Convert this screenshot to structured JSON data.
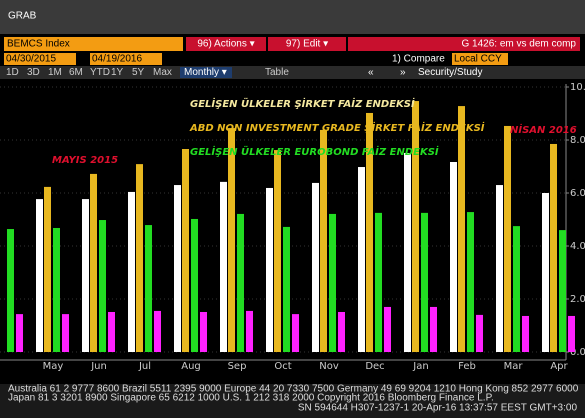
{
  "ui": {
    "window_title": "GRAB",
    "ticker": "BEMCS Index",
    "actions": "96) Actions ▾",
    "edit": "97) Edit ▾",
    "chart_id": "G 1426: em vs dem comp",
    "start_date": "04/30/2015",
    "end_date": "04/19/2016",
    "compare": "1) Compare",
    "currency": "Local CCY",
    "study": "Security/Study",
    "periods": [
      "1D",
      "3D",
      "1M",
      "6M",
      "YTD",
      "1Y",
      "5Y",
      "Max"
    ],
    "frequency": "Monthly ▾",
    "table": "Table",
    "footer": [
      "Australia 61 2 9777 8600 Brazil 5511 2395 9000 Europe 44 20 7330 7500 Germany 49 69 9204 1210 Hong Kong 852 2977 6000",
      "Japan 81 3 3201 8900 Singapore 65 6212 1000 U.S. 1 212 318 2000 Copyright 2016 Bloomberg Finance L.P.",
      "SN 594644 H307-1237-1 20-Apr-16 13:37:57 EEST GMT+3:00"
    ]
  },
  "chart_data": {
    "type": "bar",
    "annotations": [
      "MAYIS 2015",
      "NİSAN 2016"
    ],
    "categories": [
      null,
      "May",
      "Jun",
      "Jul",
      "Aug",
      "Sep",
      "Oct",
      "Nov",
      "Dec",
      "Jan",
      "Feb",
      "Mar",
      "Apr"
    ],
    "series": [
      {
        "name": "GELİŞEN ÜLKELER ŞİRKET FAİZ ENDEKSİ",
        "color": "#ffffff",
        "values": [
          null,
          5.77,
          5.77,
          6.04,
          6.3,
          6.42,
          6.19,
          6.38,
          6.98,
          7.51,
          7.17,
          6.3,
          6.0
        ]
      },
      {
        "name": "ABD NON INVESTMENT GRADE ŞİRKET FAİZ ENDEKSİ",
        "color": "#e8b820",
        "values": [
          null,
          6.23,
          6.72,
          7.09,
          7.66,
          8.45,
          7.62,
          8.38,
          9.02,
          9.47,
          9.28,
          8.53,
          7.85
        ]
      },
      {
        "name": "GELİŞEN ÜLKELER EUROBOND FAİZ ENDEKSİ",
        "color": "#22dd22",
        "values": [
          4.64,
          4.68,
          4.98,
          4.79,
          5.02,
          5.21,
          4.72,
          5.21,
          5.25,
          5.25,
          5.28,
          4.75,
          4.6
        ]
      },
      {
        "color": "#ff22ff",
        "values": [
          1.43,
          1.43,
          1.51,
          1.55,
          1.51,
          1.55,
          1.43,
          1.51,
          1.7,
          1.7,
          1.4,
          1.36,
          1.36
        ]
      }
    ],
    "ylim": [
      0,
      10
    ],
    "yticks": [
      {
        "value": 0,
        "label": "0.000"
      },
      {
        "value": 2,
        "label": "2.000"
      },
      {
        "value": 4,
        "label": "4.000"
      },
      {
        "value": 6,
        "label": "6.000"
      },
      {
        "value": 8,
        "label": "8.000"
      },
      {
        "value": 10,
        "label": "10.000"
      }
    ],
    "grid": true
  }
}
